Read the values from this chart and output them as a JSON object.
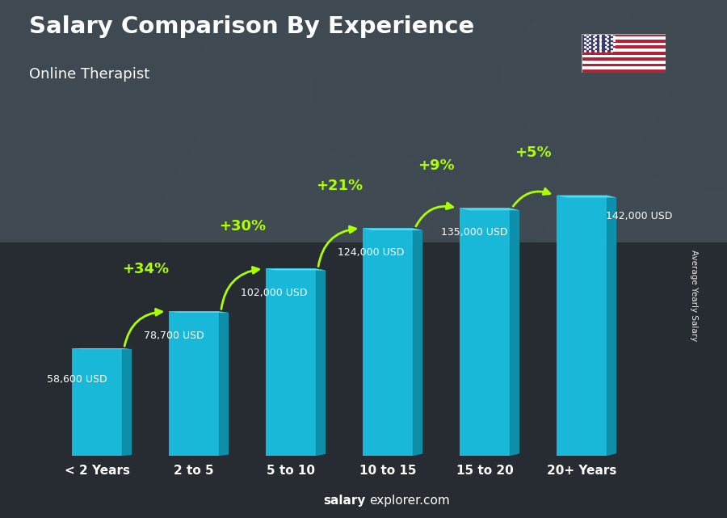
{
  "title": "Salary Comparison By Experience",
  "subtitle": "Online Therapist",
  "categories": [
    "< 2 Years",
    "2 to 5",
    "5 to 10",
    "10 to 15",
    "15 to 20",
    "20+ Years"
  ],
  "values": [
    58600,
    78700,
    102000,
    124000,
    135000,
    142000
  ],
  "labels": [
    "58,600 USD",
    "78,700 USD",
    "102,000 USD",
    "124,000 USD",
    "135,000 USD",
    "142,000 USD"
  ],
  "pct_labels": [
    "+34%",
    "+30%",
    "+21%",
    "+9%",
    "+5%"
  ],
  "bar_color_main": "#1ab8d8",
  "bar_color_dark": "#0e8faa",
  "bar_color_light": "#55d8f0",
  "bg_color": "#3a4a55",
  "pct_color": "#aaff00",
  "label_color": "#ffffff",
  "title_color": "#ffffff",
  "subtitle_color": "#ffffff",
  "footer_bold": "salary",
  "footer_normal": "explorer.com",
  "ylabel_text": "Average Yearly Salary",
  "ylim_max": 175000,
  "bar_width": 0.52
}
